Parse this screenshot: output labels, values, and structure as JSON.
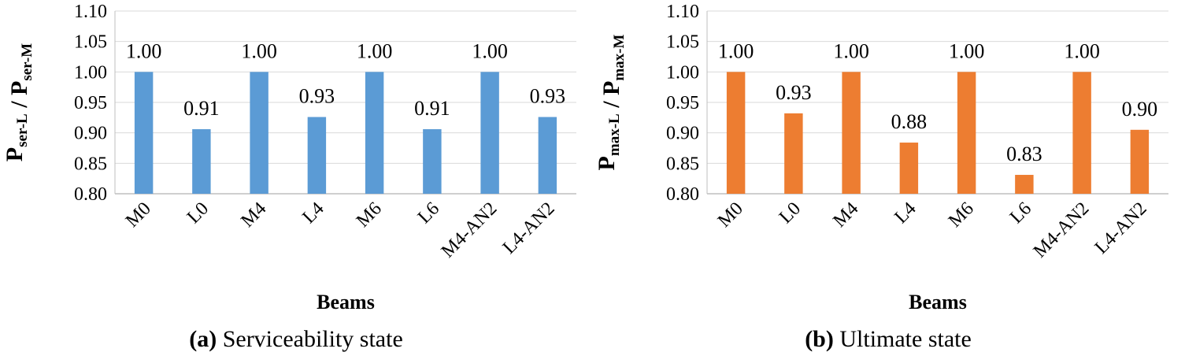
{
  "chart_data": [
    {
      "type": "bar",
      "categories": [
        "M0",
        "L0",
        "M4",
        "L4",
        "M6",
        "L6",
        "M4-AN2",
        "L4-AN2"
      ],
      "values": [
        1.0,
        0.906,
        1.0,
        0.926,
        1.0,
        0.906,
        1.0,
        0.926
      ],
      "data_labels": [
        "1.00",
        "0.91",
        "1.00",
        "0.93",
        "1.00",
        "0.91",
        "1.00",
        "0.93"
      ],
      "ylim": [
        0.8,
        1.1
      ],
      "yticks": [
        "0.80",
        "0.85",
        "0.90",
        "0.95",
        "1.00",
        "1.05",
        "1.10"
      ],
      "xlabel": "Beams",
      "ylabel": {
        "p1": "P",
        "s1": "ser-L",
        "sep": " / ",
        "p2": "P",
        "s2": "ser-M"
      },
      "color": "#5B9BD5",
      "caption": {
        "tag": "(a)",
        "text": " Serviceability state"
      }
    },
    {
      "type": "bar",
      "categories": [
        "M0",
        "L0",
        "M4",
        "L4",
        "M6",
        "L6",
        "M4-AN2",
        "L4-AN2"
      ],
      "values": [
        1.0,
        0.932,
        1.0,
        0.884,
        1.0,
        0.831,
        1.0,
        0.905
      ],
      "data_labels": [
        "1.00",
        "0.93",
        "1.00",
        "0.88",
        "1.00",
        "0.83",
        "1.00",
        "0.90"
      ],
      "ylim": [
        0.8,
        1.1
      ],
      "yticks": [
        "0.80",
        "0.85",
        "0.90",
        "0.95",
        "1.00",
        "1.05",
        "1.10"
      ],
      "xlabel": "Beams",
      "ylabel": {
        "p1": "P",
        "s1": "max-L",
        "sep": " / ",
        "p2": "P",
        "s2": "max-M"
      },
      "color": "#ED7D31",
      "caption": {
        "tag": "(b)",
        "text": " Ultimate state"
      }
    }
  ]
}
